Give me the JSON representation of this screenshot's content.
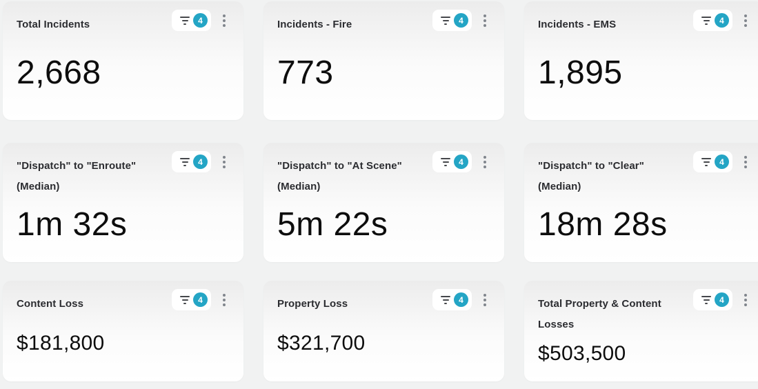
{
  "colors": {
    "page-bg": "#f1f2f2",
    "card-top": "#ececec",
    "badge-bg": "#24a5c5"
  },
  "cards": [
    {
      "title": "Total Incidents",
      "value": "2,668",
      "filter_count": "4"
    },
    {
      "title": "Incidents - Fire",
      "value": "773",
      "filter_count": "4"
    },
    {
      "title": "Incidents - EMS",
      "value": "1,895",
      "filter_count": "4"
    },
    {
      "title": "\"Dispatch\" to \"Enroute\" (Median)",
      "value": "1m 32s",
      "filter_count": "4"
    },
    {
      "title": "\"Dispatch\" to \"At Scene\" (Median)",
      "value": "5m 22s",
      "filter_count": "4"
    },
    {
      "title": "\"Dispatch\" to \"Clear\" (Median)",
      "value": "18m 28s",
      "filter_count": "4"
    },
    {
      "title": "Content Loss",
      "value": "$181,800",
      "filter_count": "4"
    },
    {
      "title": "Property Loss",
      "value": "$321,700",
      "filter_count": "4"
    },
    {
      "title": "Total Property & Content Losses",
      "value": "$503,500",
      "filter_count": "4"
    }
  ]
}
